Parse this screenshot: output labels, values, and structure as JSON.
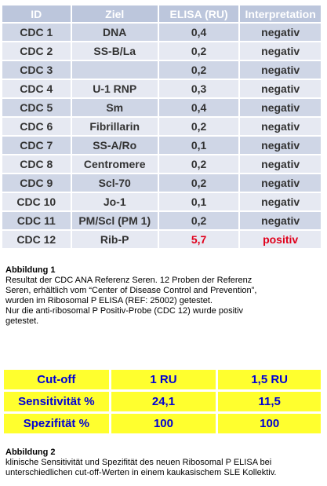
{
  "table1": {
    "headers": [
      "ID",
      "Ziel",
      "ELISA (RU)",
      "Interpretation"
    ],
    "rows": [
      [
        "CDC 1",
        "DNA",
        "0,4",
        "negativ"
      ],
      [
        "CDC 2",
        "SS-B/La",
        "0,2",
        "negativ"
      ],
      [
        "CDC 3",
        "",
        "0,2",
        "negativ"
      ],
      [
        "CDC 4",
        "U-1 RNP",
        "0,3",
        "negativ"
      ],
      [
        "CDC 5",
        "Sm",
        "0,4",
        "negativ"
      ],
      [
        "CDC 6",
        "Fibrillarin",
        "0,2",
        "negativ"
      ],
      [
        "CDC 7",
        "SS-A/Ro",
        "0,1",
        "negativ"
      ],
      [
        "CDC 8",
        "Centromere",
        "0,2",
        "negativ"
      ],
      [
        "CDC 9",
        "Scl-70",
        "0,2",
        "negativ"
      ],
      [
        "CDC 10",
        "Jo-1",
        "0,1",
        "negativ"
      ],
      [
        "CDC 11",
        "PM/Scl (PM 1)",
        "0,2",
        "negativ"
      ],
      [
        "CDC 12",
        "Rib-P",
        "5,7",
        "positiv"
      ]
    ],
    "highlight_color": "#e0001b"
  },
  "caption1": {
    "title": "Abbildung 1",
    "lines": [
      "Resultat der CDC ANA Referenz Seren. 12 Proben der  Referenz",
      "Seren, erhältlich vom “Center of Disease Control and Prevention”,",
      "wurden im Ribosomal P ELISA (REF: 25002) getestet.",
      "Nur die anti-ribosomal P Positiv-Probe (CDC 12) wurde positiv",
      "getestet."
    ]
  },
  "table2": {
    "rows": [
      [
        "Cut-off",
        "1 RU",
        "1,5 RU"
      ],
      [
        "Sensitivität %",
        "24,1",
        "11,5"
      ],
      [
        "Spezifität %",
        "100",
        "100"
      ]
    ],
    "background": "#ffff2e",
    "text_color": "#0000d6"
  },
  "caption2": {
    "title": "Abbildung 2",
    "lines": [
      "klinische Sensitivität und Spezifität des neuen Ribosomal P ELISA bei",
      "unterschiedlichen cut-off-Werten in einem kaukasischem SLE Kollektiv."
    ]
  }
}
